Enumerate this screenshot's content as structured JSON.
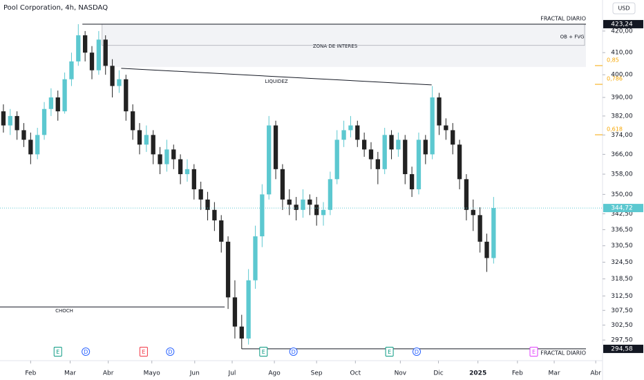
{
  "chart_data": {
    "type": "candlestick",
    "title": "Pool Corporation, 4h, NASDAQ",
    "currency": "USD",
    "log_scale": true,
    "up_color": "#5cc8d0",
    "down_color": "#222222",
    "xlim": [
      -0.5,
      88
    ],
    "ylim": [
      292.3,
      434.8
    ],
    "xticks": [
      {
        "value": 4,
        "label": "Feb"
      },
      {
        "value": 9.8,
        "label": "Mar"
      },
      {
        "value": 15.4,
        "label": "Abr"
      },
      {
        "value": 21.8,
        "label": "Mayo"
      },
      {
        "value": 28.1,
        "label": "Jun"
      },
      {
        "value": 33.6,
        "label": "Jul"
      },
      {
        "value": 39.8,
        "label": "Ago"
      },
      {
        "value": 46,
        "label": "Sep"
      },
      {
        "value": 51.7,
        "label": "Oct"
      },
      {
        "value": 58.3,
        "label": "Nov"
      },
      {
        "value": 63.9,
        "label": "Dic"
      },
      {
        "value": 69.7,
        "label": "2025"
      },
      {
        "value": 75.5,
        "label": "Feb"
      },
      {
        "value": 80.9,
        "label": "Mar"
      },
      {
        "value": 87,
        "label": "Abr"
      }
    ],
    "yticks": [
      {
        "value": 420,
        "label": "420,00"
      },
      {
        "value": 410,
        "label": "410,00"
      },
      {
        "value": 400,
        "label": "400,00"
      },
      {
        "value": 390,
        "label": "390,00"
      },
      {
        "value": 382,
        "label": "382,00"
      },
      {
        "value": 374,
        "label": "374,00"
      },
      {
        "value": 366,
        "label": "366,00"
      },
      {
        "value": 358,
        "label": "358,00"
      },
      {
        "value": 350,
        "label": "350,00"
      },
      {
        "value": 342.5,
        "label": "342,50"
      },
      {
        "value": 336.5,
        "label": "336,50"
      },
      {
        "value": 330.5,
        "label": "330,50"
      },
      {
        "value": 324.5,
        "label": "324,50"
      },
      {
        "value": 318.5,
        "label": "318,50"
      },
      {
        "value": 312.5,
        "label": "312,50"
      },
      {
        "value": 307.5,
        "label": "307,50"
      },
      {
        "value": 302.5,
        "label": "302,50"
      },
      {
        "value": 297.5,
        "label": "297,50"
      }
    ],
    "last_price": {
      "value": 344.72,
      "label": "344,72"
    },
    "candles": [
      {
        "o": 384,
        "h": 387,
        "l": 375,
        "c": 378
      },
      {
        "o": 378,
        "h": 385,
        "l": 374,
        "c": 382
      },
      {
        "o": 382,
        "h": 384,
        "l": 372,
        "c": 376
      },
      {
        "o": 376,
        "h": 379,
        "l": 369,
        "c": 372
      },
      {
        "o": 372,
        "h": 375,
        "l": 362,
        "c": 366
      },
      {
        "o": 366,
        "h": 377,
        "l": 364,
        "c": 374
      },
      {
        "o": 374,
        "h": 388,
        "l": 372,
        "c": 385
      },
      {
        "o": 385,
        "h": 394,
        "l": 382,
        "c": 390
      },
      {
        "o": 390,
        "h": 393,
        "l": 380,
        "c": 384
      },
      {
        "o": 384,
        "h": 401,
        "l": 383,
        "c": 398
      },
      {
        "o": 398,
        "h": 410,
        "l": 395,
        "c": 406
      },
      {
        "o": 406,
        "h": 423.24,
        "l": 404,
        "c": 418
      },
      {
        "o": 418,
        "h": 420,
        "l": 406,
        "c": 410
      },
      {
        "o": 410,
        "h": 413,
        "l": 398,
        "c": 402
      },
      {
        "o": 402,
        "h": 420,
        "l": 400,
        "c": 416
      },
      {
        "o": 416,
        "h": 418,
        "l": 400,
        "c": 404
      },
      {
        "o": 404,
        "h": 407,
        "l": 390,
        "c": 395
      },
      {
        "o": 395,
        "h": 402,
        "l": 392,
        "c": 398
      },
      {
        "o": 398,
        "h": 400,
        "l": 380,
        "c": 384
      },
      {
        "o": 384,
        "h": 387,
        "l": 372,
        "c": 376
      },
      {
        "o": 376,
        "h": 379,
        "l": 366,
        "c": 370
      },
      {
        "o": 370,
        "h": 378,
        "l": 367,
        "c": 374
      },
      {
        "o": 374,
        "h": 376,
        "l": 362,
        "c": 366
      },
      {
        "o": 366,
        "h": 369,
        "l": 358,
        "c": 362
      },
      {
        "o": 362,
        "h": 372,
        "l": 359,
        "c": 368
      },
      {
        "o": 368,
        "h": 370,
        "l": 360,
        "c": 364
      },
      {
        "o": 364,
        "h": 366,
        "l": 354,
        "c": 358
      },
      {
        "o": 358,
        "h": 364,
        "l": 355,
        "c": 360
      },
      {
        "o": 360,
        "h": 362,
        "l": 348,
        "c": 352
      },
      {
        "o": 352,
        "h": 355,
        "l": 344,
        "c": 348
      },
      {
        "o": 348,
        "h": 351,
        "l": 340,
        "c": 344
      },
      {
        "o": 344,
        "h": 347,
        "l": 336,
        "c": 340
      },
      {
        "o": 340,
        "h": 342,
        "l": 328,
        "c": 332
      },
      {
        "o": 332,
        "h": 334,
        "l": 308,
        "c": 312
      },
      {
        "o": 312,
        "h": 318,
        "l": 298,
        "c": 302
      },
      {
        "o": 302,
        "h": 306,
        "l": 294.58,
        "c": 298
      },
      {
        "o": 298,
        "h": 322,
        "l": 296,
        "c": 318
      },
      {
        "o": 318,
        "h": 338,
        "l": 315,
        "c": 334
      },
      {
        "o": 334,
        "h": 354,
        "l": 330,
        "c": 350
      },
      {
        "o": 350,
        "h": 382,
        "l": 348,
        "c": 378
      },
      {
        "o": 378,
        "h": 380,
        "l": 356,
        "c": 360
      },
      {
        "o": 360,
        "h": 362,
        "l": 344,
        "c": 348
      },
      {
        "o": 348,
        "h": 352,
        "l": 342,
        "c": 346
      },
      {
        "o": 346,
        "h": 349,
        "l": 340,
        "c": 344
      },
      {
        "o": 344,
        "h": 352,
        "l": 341,
        "c": 348
      },
      {
        "o": 348,
        "h": 350,
        "l": 342,
        "c": 346
      },
      {
        "o": 346,
        "h": 349,
        "l": 338,
        "c": 342
      },
      {
        "o": 342,
        "h": 347,
        "l": 338,
        "c": 344
      },
      {
        "o": 344,
        "h": 359,
        "l": 342,
        "c": 356
      },
      {
        "o": 356,
        "h": 376,
        "l": 354,
        "c": 372
      },
      {
        "o": 372,
        "h": 380,
        "l": 369,
        "c": 376
      },
      {
        "o": 376,
        "h": 382,
        "l": 373,
        "c": 378
      },
      {
        "o": 378,
        "h": 380,
        "l": 369,
        "c": 372
      },
      {
        "o": 372,
        "h": 375,
        "l": 365,
        "c": 368
      },
      {
        "o": 368,
        "h": 371,
        "l": 360,
        "c": 364
      },
      {
        "o": 364,
        "h": 367,
        "l": 354,
        "c": 360
      },
      {
        "o": 360,
        "h": 377,
        "l": 358,
        "c": 374
      },
      {
        "o": 374,
        "h": 376,
        "l": 364,
        "c": 368
      },
      {
        "o": 368,
        "h": 375,
        "l": 365,
        "c": 372
      },
      {
        "o": 372,
        "h": 374,
        "l": 354,
        "c": 358
      },
      {
        "o": 358,
        "h": 361,
        "l": 349,
        "c": 352
      },
      {
        "o": 352,
        "h": 375,
        "l": 350,
        "c": 372
      },
      {
        "o": 372,
        "h": 374,
        "l": 362,
        "c": 366
      },
      {
        "o": 366,
        "h": 395,
        "l": 364,
        "c": 390
      },
      {
        "o": 390,
        "h": 392,
        "l": 374,
        "c": 378
      },
      {
        "o": 378,
        "h": 381,
        "l": 372,
        "c": 376
      },
      {
        "o": 376,
        "h": 379,
        "l": 366,
        "c": 370
      },
      {
        "o": 370,
        "h": 372,
        "l": 352,
        "c": 356
      },
      {
        "o": 356,
        "h": 358,
        "l": 340,
        "c": 344
      },
      {
        "o": 344,
        "h": 348,
        "l": 336,
        "c": 342
      },
      {
        "o": 342,
        "h": 345,
        "l": 328,
        "c": 332
      },
      {
        "o": 332,
        "h": 335,
        "l": 321,
        "c": 326
      },
      {
        "o": 326,
        "h": 349,
        "l": 324,
        "c": 344.72
      }
    ],
    "levels": [
      {
        "name": "FRACTAL DIARIO",
        "value": 423.24,
        "label": "423,24",
        "from": 11.6
      },
      {
        "name": "FRACTAL DIARIO",
        "value": 294.58,
        "label": "294,58",
        "from": 35
      }
    ],
    "zone": {
      "label": "ZONA DE INTERES",
      "top": 423.24,
      "bottom": 403.5,
      "from": 14.5
    },
    "ob_fvg": {
      "label": "OB + FVG",
      "top": 423.24,
      "bottom": 413.3
    },
    "liquidity": {
      "label": "LIQUIDEZ",
      "x": [
        17.3,
        62.9
      ],
      "y": [
        402.9,
        395.5
      ]
    },
    "choch": {
      "label": "CHOCH",
      "value": 308.7,
      "x": [
        -0.5,
        32.5
      ]
    },
    "fib": [
      {
        "label": "0,85",
        "value": 406.6
      },
      {
        "label": "0,786",
        "value": 398.2
      },
      {
        "label": "0,618",
        "value": 376.4
      }
    ],
    "fib_color": "#f7a600",
    "events": [
      {
        "label": "E",
        "x": 8,
        "color": "#089981"
      },
      {
        "label": "D",
        "x": 12.1,
        "color": "#2962ff"
      },
      {
        "label": "E",
        "x": 20.6,
        "color": "#f23645"
      },
      {
        "label": "D",
        "x": 24.5,
        "color": "#2962ff"
      },
      {
        "label": "E",
        "x": 38.2,
        "color": "#089981"
      },
      {
        "label": "D",
        "x": 42.6,
        "color": "#2962ff"
      },
      {
        "label": "E",
        "x": 56.7,
        "color": "#089981"
      },
      {
        "label": "D",
        "x": 60.7,
        "color": "#2962ff"
      },
      {
        "label": "E",
        "x": 77.9,
        "color": "#e040fb"
      }
    ]
  }
}
